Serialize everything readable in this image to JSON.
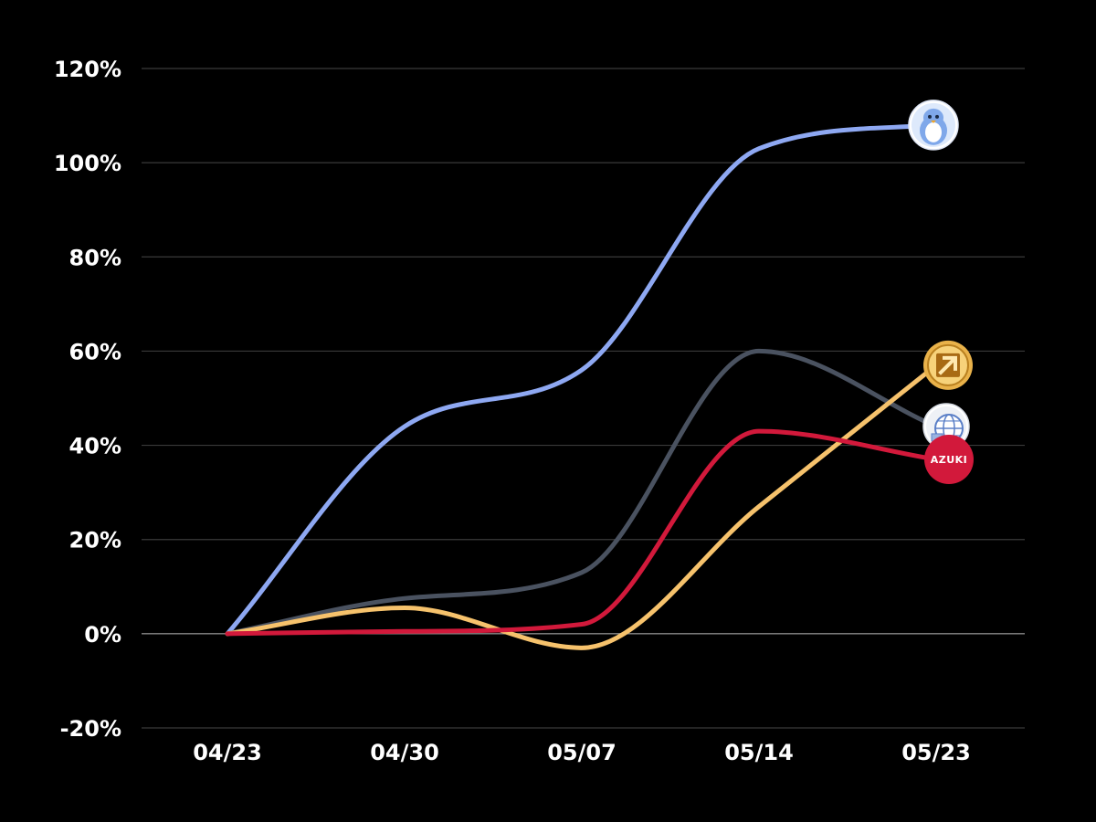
{
  "chart_data": {
    "type": "line",
    "title": "",
    "xlabel": "",
    "ylabel": "",
    "categories": [
      "04/23",
      "04/30",
      "05/07",
      "05/14",
      "05/23"
    ],
    "ylim": [
      -20,
      120
    ],
    "yticks": [
      -20,
      0,
      20,
      40,
      60,
      80,
      100,
      120
    ],
    "ytick_labels": [
      "-20%",
      "0%",
      "20%",
      "40%",
      "60%",
      "80%",
      "100%",
      "120%"
    ],
    "grid": true,
    "legend": "none",
    "series": [
      {
        "key": "blue",
        "color": "#8ea8f2",
        "icon": "penguin-icon",
        "values": [
          0,
          44,
          56,
          103,
          108
        ]
      },
      {
        "key": "gray",
        "color": "#4a5260",
        "icon": "globe-icon",
        "values": [
          0,
          7.5,
          13,
          60,
          44
        ]
      },
      {
        "key": "red",
        "color": "#d2193b",
        "icon": "azuki-logo-icon",
        "badge_text": "AZUKI",
        "values": [
          0,
          0.5,
          2,
          43,
          37
        ]
      },
      {
        "key": "gold",
        "color": "#f6c26c",
        "icon": "arrow-up-right-icon",
        "values": [
          0,
          5.5,
          -3,
          27,
          57
        ]
      }
    ]
  }
}
